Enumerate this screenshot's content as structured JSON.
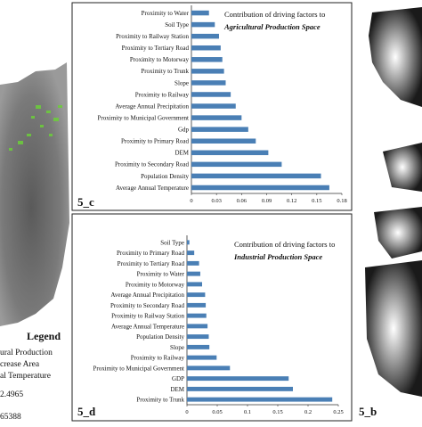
{
  "left_panel": {
    "legend_heading": "Legend",
    "legend_lines": [
      "ural Production",
      "crease Area",
      "al Temperature"
    ],
    "values": [
      "2.4965",
      "65388"
    ]
  },
  "right_panel": {
    "label": "5_b"
  },
  "chart_data": [
    {
      "type": "bar",
      "orientation": "horizontal",
      "panel_label": "5_c",
      "title": "Contribution of driving factors to",
      "subtitle": "Agricultural Production Space",
      "categories": [
        "Proximity to Water",
        "Soil Type",
        "Proximity to Railway Station",
        "Proximity to Tertiary Road",
        "Proximity to Motorway",
        "Proximity to Trunk",
        "Slope",
        "Proximity to Railway",
        "Average Annual Precipitation",
        "Proximity to Municipal Government",
        "Gdp",
        "Proximity to Primary Road",
        "DEM",
        "Proximity to Secondary Road",
        "Population Density",
        "Average Annual Temperature"
      ],
      "values": [
        0.021,
        0.028,
        0.033,
        0.035,
        0.037,
        0.039,
        0.041,
        0.047,
        0.053,
        0.06,
        0.068,
        0.077,
        0.092,
        0.108,
        0.155,
        0.165
      ],
      "xlim": [
        0,
        0.18
      ],
      "xticks": [
        "0",
        "0.03",
        "0.06",
        "0.09",
        "0.12",
        "0.15",
        "0.18"
      ],
      "colors": {
        "bar": "#4a7fb5"
      }
    },
    {
      "type": "bar",
      "orientation": "horizontal",
      "panel_label": "5_d",
      "title": "Contribution of driving factors to",
      "subtitle": "Industrial Production Space",
      "categories": [
        "Soil Type",
        "Proximity to Primary Road",
        "Proximity to Tertiary Road",
        "Proximity to Water",
        "Proximity to Motorway",
        "Average Annual Precipitation",
        "Proximity to Secondary Road",
        "Proximity to Railway Station",
        "Average Annual Temperature",
        "Population Density",
        "Slope",
        "Proximity to Railway",
        "Proximity to Municipal Government",
        "GDP",
        "DEM",
        "Proximity to Trunk"
      ],
      "values": [
        0.004,
        0.012,
        0.02,
        0.022,
        0.025,
        0.03,
        0.031,
        0.032,
        0.034,
        0.036,
        0.037,
        0.049,
        0.071,
        0.168,
        0.175,
        0.24
      ],
      "xlim": [
        0,
        0.25
      ],
      "xticks": [
        "0",
        "0.05",
        "0.1",
        "0.15",
        "0.2",
        "0.25"
      ],
      "colors": {
        "bar": "#4a7fb5"
      }
    }
  ]
}
